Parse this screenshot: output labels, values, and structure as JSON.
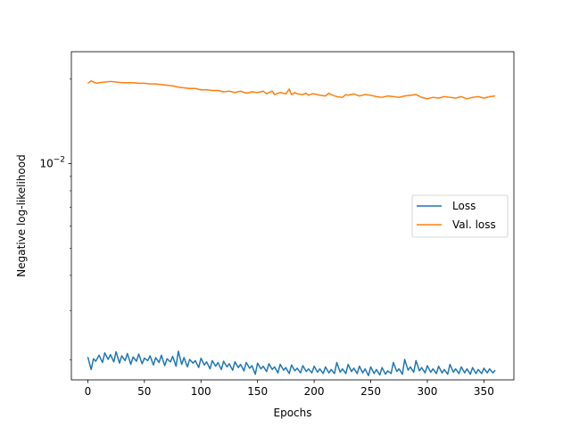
{
  "chart_data": {
    "type": "line",
    "title": "",
    "xlabel": "Epochs",
    "ylabel": "Negative log-likelihood",
    "xlim": [
      -14.5,
      376.5
    ],
    "ylim": [
      0.0017,
      0.025
    ],
    "yscale": "log",
    "x_ticks": [
      0,
      50,
      100,
      150,
      200,
      250,
      300,
      350
    ],
    "y_ticks": [
      {
        "value": 0.01,
        "base": "10",
        "exp": "−2"
      }
    ],
    "grid": false,
    "legend_position": "center-right",
    "colors": {
      "Loss": "#1f77b4",
      "Val. loss": "#ff7f0e"
    },
    "series": [
      {
        "name": "Loss",
        "x": [
          0,
          3,
          5,
          7,
          10,
          13,
          15,
          18,
          20,
          23,
          25,
          28,
          30,
          33,
          35,
          38,
          40,
          43,
          45,
          48,
          50,
          53,
          55,
          58,
          60,
          63,
          65,
          68,
          70,
          73,
          75,
          78,
          80,
          83,
          85,
          88,
          90,
          93,
          95,
          98,
          100,
          103,
          105,
          108,
          110,
          113,
          115,
          118,
          120,
          123,
          125,
          128,
          130,
          133,
          135,
          138,
          140,
          143,
          145,
          148,
          150,
          153,
          155,
          158,
          160,
          163,
          165,
          168,
          170,
          173,
          175,
          178,
          180,
          183,
          185,
          188,
          190,
          193,
          195,
          198,
          200,
          203,
          205,
          208,
          210,
          213,
          215,
          218,
          220,
          223,
          225,
          228,
          230,
          233,
          235,
          238,
          240,
          243,
          245,
          248,
          250,
          253,
          255,
          258,
          260,
          263,
          265,
          268,
          270,
          273,
          275,
          278,
          280,
          283,
          285,
          288,
          290,
          293,
          295,
          298,
          300,
          303,
          305,
          308,
          310,
          313,
          315,
          318,
          320,
          323,
          325,
          328,
          330,
          333,
          335,
          338,
          340,
          343,
          345,
          348,
          350,
          353,
          355,
          358,
          360
        ],
        "values": [
          0.00205,
          0.00185,
          0.00202,
          0.00198,
          0.00208,
          0.00196,
          0.00212,
          0.00201,
          0.00209,
          0.00197,
          0.00214,
          0.00195,
          0.00207,
          0.00199,
          0.00211,
          0.00193,
          0.00205,
          0.00198,
          0.0021,
          0.00194,
          0.00203,
          0.00199,
          0.00207,
          0.00192,
          0.00204,
          0.00196,
          0.00208,
          0.00191,
          0.00202,
          0.00197,
          0.00206,
          0.0019,
          0.00215,
          0.00193,
          0.00204,
          0.00189,
          0.00201,
          0.00195,
          0.00199,
          0.00188,
          0.00203,
          0.00192,
          0.00197,
          0.00186,
          0.00199,
          0.0019,
          0.00196,
          0.00185,
          0.00198,
          0.00189,
          0.00194,
          0.00184,
          0.00197,
          0.00188,
          0.00193,
          0.00183,
          0.00196,
          0.00187,
          0.00191,
          0.00178,
          0.00195,
          0.00186,
          0.0019,
          0.00182,
          0.00194,
          0.00185,
          0.00189,
          0.0018,
          0.00193,
          0.00184,
          0.00188,
          0.00179,
          0.00192,
          0.00183,
          0.00187,
          0.0018,
          0.00191,
          0.00182,
          0.00186,
          0.0018,
          0.0019,
          0.00181,
          0.00186,
          0.00179,
          0.00189,
          0.0018,
          0.00185,
          0.00179,
          0.00196,
          0.00181,
          0.00186,
          0.00179,
          0.00193,
          0.00182,
          0.00187,
          0.00179,
          0.0019,
          0.0018,
          0.00186,
          0.00176,
          0.00189,
          0.00179,
          0.00185,
          0.00177,
          0.00188,
          0.00178,
          0.00183,
          0.00179,
          0.00196,
          0.00182,
          0.00186,
          0.00178,
          0.00201,
          0.00184,
          0.00189,
          0.00181,
          0.00199,
          0.00183,
          0.00188,
          0.0018,
          0.00191,
          0.00181,
          0.00186,
          0.00179,
          0.0019,
          0.0018,
          0.00185,
          0.00178,
          0.00193,
          0.00181,
          0.00186,
          0.00179,
          0.00189,
          0.0018,
          0.00186,
          0.00178,
          0.00188,
          0.00179,
          0.00185,
          0.00179,
          0.00187,
          0.0018,
          0.00186,
          0.0018,
          0.00184
        ]
      },
      {
        "name": "Val. loss",
        "x": [
          0,
          3,
          5,
          8,
          10,
          15,
          20,
          25,
          30,
          35,
          40,
          45,
          50,
          55,
          60,
          65,
          70,
          75,
          80,
          85,
          90,
          95,
          100,
          105,
          110,
          115,
          120,
          125,
          130,
          135,
          140,
          145,
          150,
          155,
          158,
          160,
          163,
          165,
          170,
          175,
          178,
          180,
          183,
          185,
          190,
          193,
          195,
          198,
          200,
          205,
          210,
          213,
          215,
          220,
          225,
          228,
          230,
          235,
          240,
          245,
          250,
          255,
          260,
          265,
          270,
          275,
          280,
          285,
          290,
          295,
          300,
          305,
          310,
          315,
          320,
          325,
          330,
          335,
          340,
          345,
          350,
          355,
          360
        ],
        "values": [
          0.0193,
          0.0197,
          0.0195,
          0.0193,
          0.0194,
          0.0195,
          0.0196,
          0.0195,
          0.0194,
          0.0194,
          0.0194,
          0.0193,
          0.0193,
          0.0192,
          0.0192,
          0.0191,
          0.019,
          0.0189,
          0.0187,
          0.0186,
          0.0185,
          0.0185,
          0.0183,
          0.0183,
          0.0182,
          0.0182,
          0.018,
          0.0181,
          0.0179,
          0.0181,
          0.0178,
          0.018,
          0.0179,
          0.0181,
          0.0177,
          0.0179,
          0.0181,
          0.0176,
          0.0179,
          0.0177,
          0.0184,
          0.0176,
          0.0179,
          0.0177,
          0.0176,
          0.0178,
          0.0175,
          0.0177,
          0.0177,
          0.0175,
          0.0174,
          0.0178,
          0.0176,
          0.0173,
          0.0172,
          0.0176,
          0.0175,
          0.0177,
          0.0174,
          0.0176,
          0.0175,
          0.0173,
          0.0172,
          0.0174,
          0.0173,
          0.0172,
          0.0174,
          0.0175,
          0.0176,
          0.0172,
          0.017,
          0.0172,
          0.0171,
          0.0173,
          0.0172,
          0.0171,
          0.0173,
          0.017,
          0.0172,
          0.0173,
          0.0171,
          0.0173,
          0.0174
        ]
      }
    ]
  }
}
